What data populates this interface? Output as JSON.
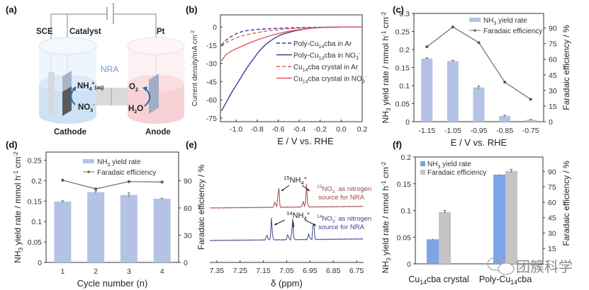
{
  "panels": {
    "a": "(a)",
    "b": "(b)",
    "c": "(c)",
    "d": "(d)",
    "e": "(e)",
    "f": "(f)"
  },
  "diagram": {
    "labels": {
      "sce": "SCE",
      "catalyst": "Catalyst",
      "pt": "Pt",
      "nra": "NRA",
      "cathode": "Cathode",
      "anode": "Anode",
      "nh4": "NH",
      "nh4_sub": "4",
      "nh4_sup": "+",
      "nh4_aq": "(aq)",
      "no3": "NO",
      "no3_sub": "3",
      "no3_sup": "-",
      "o2": "O",
      "o2_sub": "2",
      "h2o_h": "H",
      "h2o_sub": "2",
      "h2o_o": "O"
    },
    "colors": {
      "cathode": "#cfe0f3",
      "anode": "#f7cfd3",
      "electrode": "#9aa8c2",
      "catalyst_dark": "#555555",
      "arrow": "#2a6db0",
      "nra": "#6f9bd1"
    }
  },
  "chart_data": [
    {
      "id": "b",
      "type": "line",
      "title": "",
      "xlabel": "E / V vs. RHE",
      "ylabel": "Current density/mA cm⁻²",
      "xlim": [
        -1.15,
        0.2
      ],
      "ylim": [
        -78,
        10
      ],
      "xticks": [
        -1.0,
        -0.8,
        -0.6,
        -0.4,
        -0.2,
        0.0,
        0.2
      ],
      "xtick_labels": [
        "-1.0",
        "-0.8",
        "-0.6",
        "-0.4",
        "-0.2",
        "0.0",
        "0.2"
      ],
      "yticks": [
        0,
        -15,
        -30,
        -45,
        -60,
        -75
      ],
      "ytick_labels": [
        "0",
        "-15",
        "-30",
        "-45",
        "-60",
        "-75"
      ],
      "legend_position": "center-right",
      "series": [
        {
          "name": "Poly-Cu14cba in Ar",
          "label_parts": [
            "Poly-Cu",
            "14",
            "cba in Ar",
            "",
            ""
          ],
          "color": "#3a3f95",
          "dash": true,
          "x": [
            -1.14,
            -1.1,
            -1.05,
            -1.0,
            -0.95,
            -0.9,
            -0.8,
            -0.7,
            -0.6,
            -0.5,
            -0.4,
            -0.3,
            -0.2,
            0.0,
            0.2
          ],
          "y": [
            -15,
            -11,
            -8,
            -5.5,
            -4,
            -3,
            -2,
            -1.5,
            -1.1,
            -0.8,
            -0.5,
            -0.3,
            -0.2,
            -0.1,
            0
          ]
        },
        {
          "name": "Poly-Cu14cba in NO3-",
          "label_parts": [
            "Poly-Cu",
            "14",
            "cba in NO",
            "3",
            "-"
          ],
          "color": "#3a3f95",
          "dash": false,
          "x": [
            -1.14,
            -1.1,
            -1.05,
            -1.0,
            -0.95,
            -0.9,
            -0.85,
            -0.8,
            -0.75,
            -0.7,
            -0.65,
            -0.6,
            -0.55,
            -0.5,
            -0.45,
            -0.4,
            -0.35,
            -0.3,
            -0.25,
            -0.2,
            -0.1,
            0.0,
            0.2
          ],
          "y": [
            -69,
            -63,
            -55,
            -48,
            -41,
            -34,
            -28,
            -22,
            -17,
            -13,
            -10,
            -7.5,
            -5.8,
            -4.5,
            -3.4,
            -2.5,
            -1.8,
            -1.2,
            -0.7,
            -0.4,
            -0.2,
            -0.1,
            0
          ]
        },
        {
          "name": "Cu14cba crystal in Ar",
          "label_parts": [
            "Cu",
            "14",
            "cba crystal in Ar",
            "",
            ""
          ],
          "color": "#e0585f",
          "dash": true,
          "x": [
            -1.14,
            -1.1,
            -1.05,
            -1.0,
            -0.95,
            -0.9,
            -0.8,
            -0.7,
            -0.6,
            -0.5,
            -0.4,
            -0.3,
            -0.2,
            0.0,
            0.2
          ],
          "y": [
            -16,
            -13,
            -11,
            -9,
            -7.5,
            -6.3,
            -4.6,
            -3.2,
            -2.2,
            -1.5,
            -0.9,
            -0.5,
            -0.3,
            -0.1,
            0
          ]
        },
        {
          "name": "Cu14cba crystal in NO3-",
          "label_parts": [
            "Cu",
            "14",
            "cba crystal in NO",
            "3",
            "-"
          ],
          "color": "#e0585f",
          "dash": false,
          "x": [
            -1.14,
            -1.1,
            -1.05,
            -1.0,
            -0.95,
            -0.9,
            -0.85,
            -0.8,
            -0.7,
            -0.6,
            -0.5,
            -0.4,
            -0.3,
            -0.2,
            -0.1,
            0.0,
            0.2
          ],
          "y": [
            -28,
            -23,
            -20,
            -18,
            -16,
            -14,
            -12.3,
            -10.7,
            -7.8,
            -5.4,
            -3.5,
            -2.1,
            -1.1,
            -0.5,
            -0.2,
            -0.1,
            0
          ]
        }
      ]
    },
    {
      "id": "c",
      "type": "bar",
      "xlabel": "E / V vs. RHE",
      "ylabel": "NH3 yield rate / mmol h⁻¹ cm⁻²",
      "y2label": "Faradaic efficiency / %",
      "categories": [
        "-1.15",
        "-1.05",
        "-0.95",
        "-0.85",
        "-0.75"
      ],
      "ylim": [
        0,
        0.3
      ],
      "yticks": [
        0,
        0.05,
        0.1,
        0.15,
        0.2,
        0.25,
        0.3
      ],
      "ytick_labels": [
        "0",
        "0.05",
        "0.1",
        "0.15",
        "0.2",
        "0.25",
        "0.3"
      ],
      "y2lim": [
        0,
        104
      ],
      "y2ticks": [
        0,
        15,
        30,
        45,
        60,
        75,
        90
      ],
      "legend_position": "top-right",
      "series": [
        {
          "name": "NH3 yield rate",
          "type": "bar",
          "color": "#b4c2e6",
          "values": [
            0.175,
            0.168,
            0.095,
            0.016,
            0.005
          ],
          "errors": [
            0.002,
            0.002,
            0.004,
            0.002,
            0.001
          ]
        },
        {
          "name": "Faradaic efficiency",
          "type": "line",
          "axis": "right",
          "color": "#6b6b6b",
          "values": [
            72,
            91,
            76,
            38,
            21.5
          ]
        }
      ]
    },
    {
      "id": "d",
      "type": "bar",
      "xlabel": "Cycle number (n)",
      "ylabel": "NH3 yield rate / mmol h⁻¹ cm⁻²",
      "y2label": "Faradaic efficiency / %",
      "categories": [
        "1",
        "2",
        "3",
        "4"
      ],
      "ylim": [
        0,
        0.27
      ],
      "yticks": [
        0,
        0.05,
        0.1,
        0.15,
        0.2,
        0.25
      ],
      "ytick_labels": [
        "0",
        "0.05",
        "0.1",
        "0.15",
        "0.2",
        "0.25"
      ],
      "y2lim": [
        0,
        121.5
      ],
      "y2ticks": [
        0,
        30,
        60,
        90
      ],
      "legend_position": "top-center",
      "series": [
        {
          "name": "NH3 yield rate",
          "type": "bar",
          "color": "#b4c2e6",
          "values": [
            0.149,
            0.172,
            0.165,
            0.156
          ],
          "errors": [
            0.002,
            0.003,
            0.005,
            0.001
          ]
        },
        {
          "name": "Faradaic efficiency",
          "type": "line",
          "axis": "right",
          "color": "#6b6b6b",
          "values": [
            90.5,
            81,
            89,
            88.5
          ]
        }
      ]
    },
    {
      "id": "e",
      "type": "line",
      "xlabel": "δ (ppm)",
      "xlim": [
        7.38,
        6.72
      ],
      "xticks": [
        7.35,
        7.25,
        7.15,
        7.05,
        6.95,
        6.85,
        6.75
      ],
      "xtick_labels": [
        "7.35",
        "7.25",
        "7.15",
        "7.05",
        "6.95",
        "6.85",
        "6.75"
      ],
      "series": [
        {
          "name": "15NO3- as nitrogen source for NRA",
          "color": "#9c4a4a",
          "peaks": [
            7.085,
            6.965
          ],
          "small_peaks": [
            7.1,
            6.98
          ]
        },
        {
          "name": "14NO3- as nitrogen source for NRA",
          "color": "#3d4590",
          "peaks": [
            7.115,
            7.025,
            6.935
          ],
          "small_peaks": [
            7.135,
            7.045,
            6.955
          ]
        }
      ],
      "annotations": {
        "n15_label": [
          "15",
          "NH",
          "4",
          "+"
        ],
        "n14_label": [
          "14",
          "NH",
          "4",
          "+"
        ],
        "n15_desc": [
          "15",
          "NO",
          "3",
          "-",
          " as nitrogen",
          "source for NRA"
        ],
        "n14_desc": [
          "14",
          "NO",
          "3",
          "-",
          " as nitrogen",
          "source for NRA"
        ]
      }
    },
    {
      "id": "f",
      "type": "bar",
      "ylabel": "NH3 yield rate / mmol h⁻¹ cm⁻²",
      "y2label": "Faradaic efficiency / %",
      "categories": [
        "Cu14cba crystal",
        "Poly-Cu14cba"
      ],
      "category_parts": [
        [
          "Cu",
          "14",
          "cba crystal"
        ],
        [
          "Poly-Cu",
          "14",
          "cba"
        ]
      ],
      "ylim": [
        0,
        0.2
      ],
      "yticks": [
        0,
        0.05,
        0.1,
        0.15,
        0.2
      ],
      "ytick_labels": [
        "0",
        "0.05",
        "0.1",
        "0.15",
        "0.2"
      ],
      "y2lim": [
        0,
        104
      ],
      "y2ticks": [
        15,
        30,
        45,
        60,
        75,
        90
      ],
      "legend_position": "top-left",
      "series": [
        {
          "name": "NH3 yield rate",
          "color": "#7ea3e6",
          "values": [
            0.046,
            0.167
          ],
          "errors": [
            0.001,
            0.001
          ]
        },
        {
          "name": "Faradaic efficiency",
          "axis": "right",
          "color": "#c4c4c4",
          "values": [
            50.5,
            90.5
          ],
          "errors": [
            1.5,
            1.5
          ]
        }
      ]
    }
  ],
  "legends": {
    "yield": [
      "NH",
      "3",
      " yield rate"
    ],
    "fe": "Faradaic efficiency"
  },
  "axis_text": {
    "nh3_ylabel": [
      "NH",
      "3",
      " yield rate / mmol h",
      "-1",
      " cm",
      "-2"
    ],
    "fe_ylabel": "Faradaic efficiency / %",
    "b_ylabel": [
      "Current density/mA cm",
      "-2"
    ],
    "e_xlabel": "δ (ppm)"
  },
  "watermark": "团簇科学"
}
